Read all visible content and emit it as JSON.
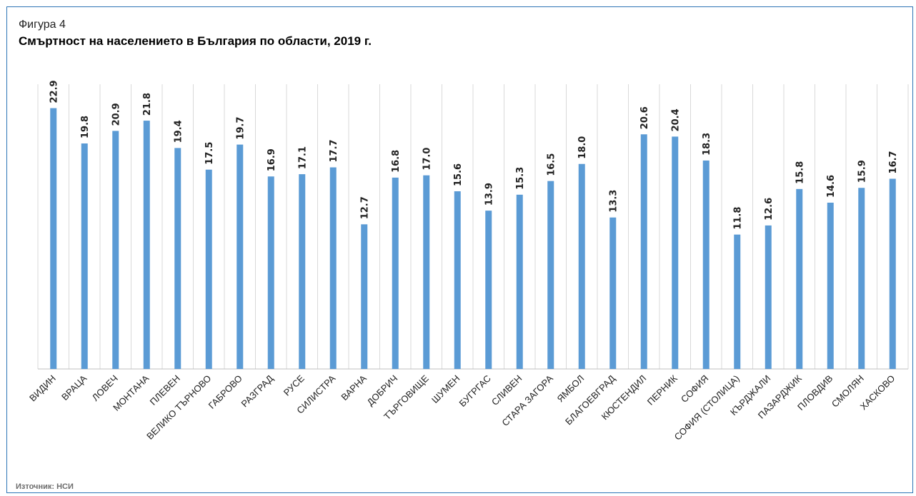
{
  "figure": {
    "label": "Фигура 4",
    "title": "Смъртност на населението в България по области, 2019 г.",
    "source": "Източник: НСИ"
  },
  "colors": {
    "bar": "#5b9bd5",
    "frame": "#2e75b6",
    "grid": "#d9d9d9"
  },
  "chart_data": {
    "type": "bar",
    "title": "Смъртност на населението в България по области, 2019 г.",
    "xlabel": "",
    "ylabel": "",
    "ylim": [
      0,
      25
    ],
    "grid": "vertical",
    "legend": "none",
    "categories": [
      "ВИДИН",
      "ВРАЦА",
      "ЛОВЕЧ",
      "МОНТАНА",
      "ПЛЕВЕН",
      "ВЕЛИКО ТЪРНОВО",
      "ГАБРОВО",
      "РАЗГРАД",
      "РУСЕ",
      "СИЛИСТРА",
      "ВАРНА",
      "ДОБРИЧ",
      "ТЪРГОВИЩЕ",
      "ШУМЕН",
      "БУГРГАС",
      "СЛИВЕН",
      "СТАРА ЗАГОРА",
      "ЯМБОЛ",
      "БЛАГОЕВГРАД",
      "КЮСТЕНДИЛ",
      "ПЕРНИК",
      "СОФИЯ",
      "СОФИЯ (СТОЛИЦА)",
      "КЪРДЖАЛИ",
      "ПАЗАРДЖИК",
      "ПЛОВДИВ",
      "СМОЛЯН",
      "ХАСКОВО"
    ],
    "values": [
      22.9,
      19.8,
      20.9,
      21.8,
      19.4,
      17.5,
      19.7,
      16.9,
      17.1,
      17.7,
      12.7,
      16.8,
      17.0,
      15.6,
      13.9,
      15.3,
      16.5,
      18.0,
      13.3,
      20.6,
      20.4,
      18.3,
      11.8,
      12.6,
      15.8,
      14.6,
      15.9,
      16.7
    ],
    "value_labels": [
      "22.9",
      "19.8",
      "20.9",
      "21.8",
      "19.4",
      "17.5",
      "19.7",
      "16.9",
      "17.1",
      "17.7",
      "12.7",
      "16.8",
      "17.0",
      "15.6",
      "13.9",
      "15.3",
      "16.5",
      "18.0",
      "13.3",
      "20.6",
      "20.4",
      "18.3",
      "11.8",
      "12.6",
      "15.8",
      "14.6",
      "15.9",
      "16.7"
    ]
  }
}
